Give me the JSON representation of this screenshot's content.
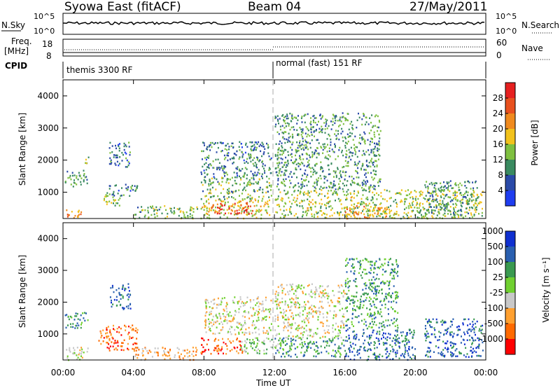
{
  "header": {
    "station": "Syowa East (fitACF)",
    "beam": "Beam 04",
    "date": "27/May/2011"
  },
  "top_panels": {
    "nsky_label": "N.Sky",
    "nsky_ticks": [
      "10^5",
      "10^0"
    ],
    "nsearch_label": "N.Search",
    "nsearch_ticks": [
      "10^5",
      "10^0"
    ],
    "freq_label_line1": "Freq.",
    "freq_label_line2": "[MHz]",
    "freq_ticks": [
      "18",
      "8"
    ],
    "nave_label": "Nave",
    "nave_ticks": [
      "60",
      "0"
    ],
    "cpid_label": "CPID",
    "cpid_modes": [
      "themis 3300 RF",
      "normal (fast) 151 RF"
    ]
  },
  "x_axis": {
    "label": "Time UT",
    "ticks": [
      "00:00",
      "04:00",
      "08:00",
      "12:00",
      "16:00",
      "20:00",
      "00:00"
    ]
  },
  "colors": {
    "power": [
      "#1f3df0",
      "#2a4aa8",
      "#3a8a60",
      "#7fc040",
      "#f2c21c",
      "#f08a1e",
      "#e8501e",
      "#e62020"
    ],
    "velocity": [
      "#ff0000",
      "#ff6a00",
      "#ffa030",
      "#c8c8c8",
      "#70d030",
      "#3a9a50",
      "#2a60b0",
      "#1030d0"
    ],
    "data_bar": "#c8c8c8",
    "dashed_line": "#aaaaaa"
  },
  "chart_data": [
    {
      "type": "heatmap",
      "title": "Power",
      "xlabel": "Time UT",
      "ylabel": "Slant Range [km]",
      "xlim_hours": [
        0,
        24
      ],
      "ylim_km": [
        180,
        4500
      ],
      "y_ticks": [
        1000,
        2000,
        3000,
        4000
      ],
      "colorbar_label": "Power [dB]",
      "colorbar_ticks": [
        "4",
        "8",
        "12",
        "16",
        "20",
        "24",
        "28"
      ],
      "colorbar_range": [
        0,
        30
      ],
      "clusters": [
        {
          "t": [
            0.0,
            1.0
          ],
          "r": [
            200,
            500
          ],
          "v": 20
        },
        {
          "t": [
            0.1,
            1.4
          ],
          "r": [
            1200,
            1700
          ],
          "v": 10
        },
        {
          "t": [
            1.2,
            1.5
          ],
          "r": [
            1900,
            2200
          ],
          "v": 12
        },
        {
          "t": [
            2.0,
            3.2
          ],
          "r": [
            600,
            900
          ],
          "v": 14
        },
        {
          "t": [
            2.4,
            4.2
          ],
          "r": [
            900,
            1300
          ],
          "v": 8
        },
        {
          "t": [
            2.6,
            3.8
          ],
          "r": [
            1800,
            2600
          ],
          "v": 8
        },
        {
          "t": [
            4.0,
            7.6
          ],
          "r": [
            200,
            600
          ],
          "v": 12
        },
        {
          "t": [
            7.8,
            11.8
          ],
          "r": [
            200,
            800
          ],
          "v": 16
        },
        {
          "t": [
            8.4,
            10.8
          ],
          "r": [
            350,
            700
          ],
          "v": 26
        },
        {
          "t": [
            7.8,
            11.8
          ],
          "r": [
            800,
            1500
          ],
          "v": 12
        },
        {
          "t": [
            7.8,
            11.8
          ],
          "r": [
            1500,
            2600
          ],
          "v": 8
        },
        {
          "t": [
            12.0,
            23.8
          ],
          "r": [
            200,
            1100
          ],
          "v": 14
        },
        {
          "t": [
            16.0,
            18.6
          ],
          "r": [
            200,
            600
          ],
          "v": 20
        },
        {
          "t": [
            12.0,
            18.0
          ],
          "r": [
            1100,
            3500
          ],
          "v": 10
        },
        {
          "t": [
            20.5,
            23.5
          ],
          "r": [
            300,
            1400
          ],
          "v": 10
        }
      ]
    },
    {
      "type": "heatmap",
      "title": "Velocity",
      "xlabel": "Time UT",
      "ylabel": "Slant Range [km]",
      "xlim_hours": [
        0,
        24
      ],
      "ylim_km": [
        180,
        4500
      ],
      "y_ticks": [
        1000,
        2000,
        3000,
        4000
      ],
      "colorbar_label": "Velocity [m s⁻¹]",
      "colorbar_ticks": [
        "-1000",
        "-500",
        "-100",
        "-25",
        "25",
        "100",
        "500",
        "1000"
      ],
      "clusters": [
        {
          "t": [
            0.0,
            1.4
          ],
          "r": [
            200,
            600
          ],
          "v": 3
        },
        {
          "t": [
            0.1,
            1.4
          ],
          "r": [
            1200,
            1700
          ],
          "v": 5
        },
        {
          "t": [
            2.0,
            4.2
          ],
          "r": [
            500,
            1300
          ],
          "v": 1
        },
        {
          "t": [
            2.6,
            3.8
          ],
          "r": [
            1800,
            2600
          ],
          "v": 6
        },
        {
          "t": [
            4.0,
            7.6
          ],
          "r": [
            200,
            600
          ],
          "v": 2
        },
        {
          "t": [
            7.8,
            10.2
          ],
          "r": [
            400,
            900
          ],
          "v": 1
        },
        {
          "t": [
            10.0,
            12.5
          ],
          "r": [
            400,
            900
          ],
          "v": 4
        },
        {
          "t": [
            8.0,
            11.8
          ],
          "r": [
            1000,
            2200
          ],
          "v": 3
        },
        {
          "t": [
            12.0,
            16.0
          ],
          "r": [
            300,
            900
          ],
          "v": 5
        },
        {
          "t": [
            12.0,
            16.0
          ],
          "r": [
            900,
            2600
          ],
          "v": 3
        },
        {
          "t": [
            16.0,
            20.0
          ],
          "r": [
            200,
            1200
          ],
          "v": 6
        },
        {
          "t": [
            16.0,
            19.0
          ],
          "r": [
            1200,
            3400
          ],
          "v": 5
        },
        {
          "t": [
            20.5,
            23.8
          ],
          "r": [
            300,
            1500
          ],
          "v": 6
        }
      ]
    }
  ]
}
